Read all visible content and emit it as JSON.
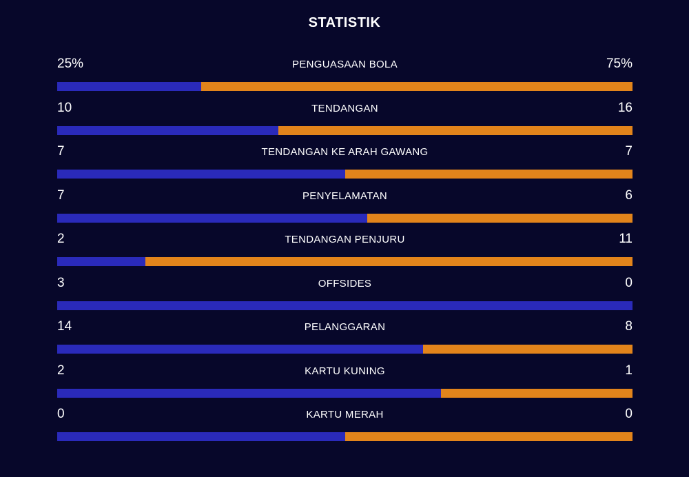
{
  "title": "STATISTIK",
  "colors": {
    "background": "#07072a",
    "home": "#2a2aba",
    "away": "#e2841b"
  },
  "chart_data": {
    "type": "bar",
    "title": "STATISTIK",
    "stats": [
      {
        "label": "PENGUASAAN BOLA",
        "left": 25,
        "right": 75,
        "left_display": "25%",
        "right_display": "75%"
      },
      {
        "label": "TENDANGAN",
        "left": 10,
        "right": 16,
        "left_display": "10",
        "right_display": "16"
      },
      {
        "label": "TENDANGAN KE ARAH GAWANG",
        "left": 7,
        "right": 7,
        "left_display": "7",
        "right_display": "7"
      },
      {
        "label": "PENYELAMATAN",
        "left": 7,
        "right": 6,
        "left_display": "7",
        "right_display": "6"
      },
      {
        "label": "TENDANGAN PENJURU",
        "left": 2,
        "right": 11,
        "left_display": "2",
        "right_display": "11"
      },
      {
        "label": "OFFSIDES",
        "left": 3,
        "right": 0,
        "left_display": "3",
        "right_display": "0"
      },
      {
        "label": "PELANGGARAN",
        "left": 14,
        "right": 8,
        "left_display": "14",
        "right_display": "8"
      },
      {
        "label": "KARTU KUNING",
        "left": 2,
        "right": 1,
        "left_display": "2",
        "right_display": "1"
      },
      {
        "label": "KARTU MERAH",
        "left": 0,
        "right": 0,
        "left_display": "0",
        "right_display": "0"
      }
    ]
  }
}
